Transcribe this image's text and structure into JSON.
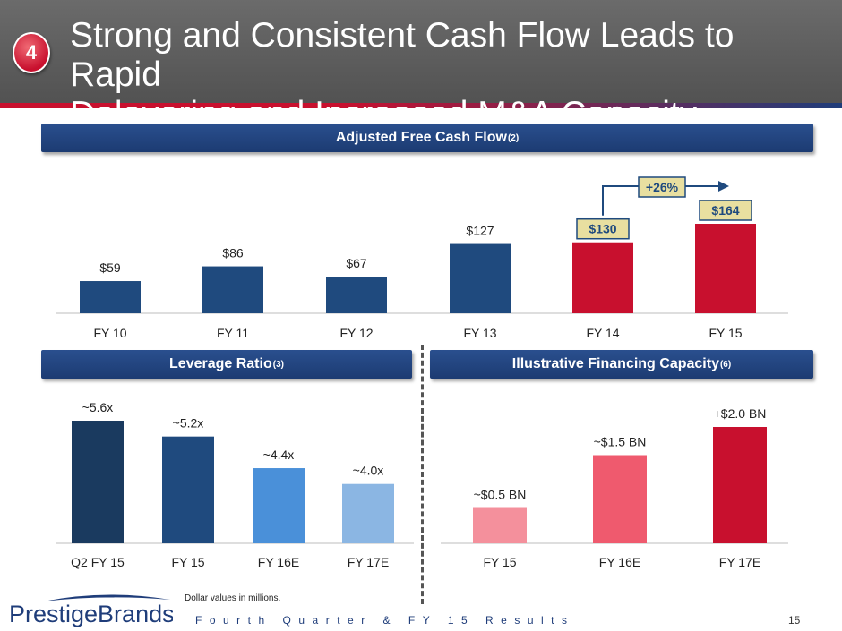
{
  "header": {
    "badge": "4",
    "title_line1": "Strong and Consistent Cash Flow Leads to Rapid",
    "title_line2": "Delevering and Increased M&A Capacity"
  },
  "banners": {
    "fcf": {
      "label": "Adjusted Free Cash Flow",
      "note": "(2)"
    },
    "leverage": {
      "label": "Leverage Ratio",
      "note": "(3)"
    },
    "financing": {
      "label": "Illustrative Financing Capacity",
      "note": "(6)"
    }
  },
  "colors": {
    "navy": "#1f4a7e",
    "red": "#c8102e",
    "dark_navy": "#1a3a5f",
    "mid_blue": "#4a90d9",
    "light_blue": "#8bb6e3",
    "pink": "#f4909c",
    "rose": "#ef5a6e",
    "callout_fill": "#e8dfa0"
  },
  "chart_data": [
    {
      "type": "bar",
      "title": "Adjusted Free Cash Flow",
      "categories": [
        "FY 10",
        "FY 11",
        "FY 12",
        "FY 13",
        "FY 14",
        "FY 15"
      ],
      "values": [
        59,
        86,
        67,
        127,
        130,
        164
      ],
      "labels": [
        "$59",
        "$86",
        "$67",
        "$127",
        "$130",
        "$164"
      ],
      "growth_annotation": "+26%",
      "ylim": [
        0,
        175
      ]
    },
    {
      "type": "bar",
      "title": "Leverage Ratio",
      "categories": [
        "Q2 FY 15",
        "FY 15",
        "FY 16E",
        "FY 17E"
      ],
      "values": [
        5.6,
        5.2,
        4.4,
        4.0
      ],
      "labels": [
        "~5.6x",
        "~5.2x",
        "~4.4x",
        "~4.0x"
      ],
      "ylim": [
        2.5,
        6.0
      ]
    },
    {
      "type": "bar",
      "title": "Illustrative Financing Capacity",
      "categories": [
        "FY 15",
        "FY 16E",
        "FY 17E"
      ],
      "values": [
        0.5,
        1.5,
        2.0
      ],
      "labels": [
        "~$0.5 BN",
        "~$1.5 BN",
        "+$2.0 BN"
      ],
      "ylim": [
        0,
        2.2
      ]
    }
  ],
  "footer": {
    "footnote": "Dollar values in millions.",
    "logo_text": "PrestigeBrands",
    "report_title": "Fourth Quarter & FY 15 Results",
    "page": "15"
  }
}
